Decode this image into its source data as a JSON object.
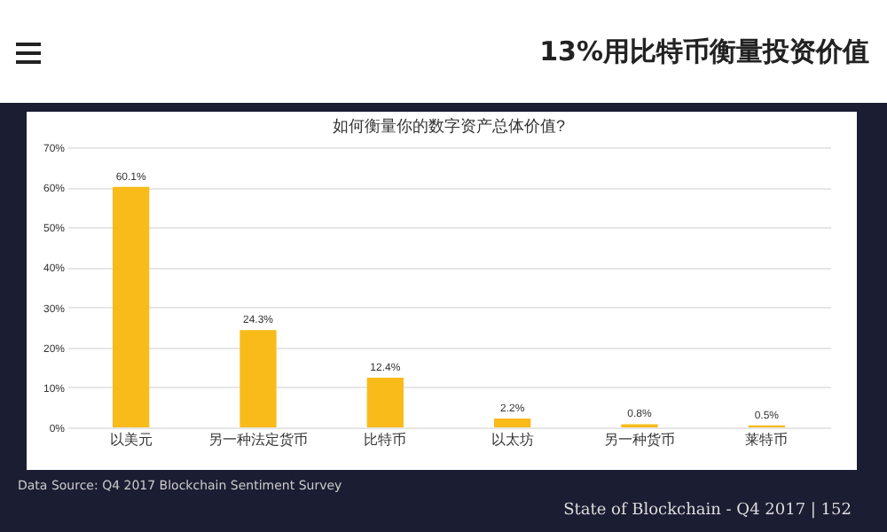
{
  "chart_data": {
    "type": "bar",
    "title": "13%用比特币衡量投资价值",
    "subtitle": "如何衡量你的数字资产总体价值?",
    "categories": [
      "以美元",
      "另一种法定货币",
      "比特币",
      "以太坊",
      "另一种货币",
      "莱特币"
    ],
    "values": [
      60.1,
      24.3,
      12.4,
      2.2,
      0.8,
      0.5
    ],
    "value_labels": [
      "60.1%",
      "24.3%",
      "12.4%",
      "2.2%",
      "0.8%",
      "0.5%"
    ],
    "color": "#f8bb1a",
    "ylim": [
      0,
      70
    ],
    "yticks": [
      {
        "value": 0,
        "label": "0%"
      },
      {
        "value": 10,
        "label": "10%"
      },
      {
        "value": 20,
        "label": "20%"
      },
      {
        "value": 30,
        "label": "30%"
      },
      {
        "value": 40,
        "label": "40%"
      },
      {
        "value": 50,
        "label": "50%"
      },
      {
        "value": 60,
        "label": "60%"
      },
      {
        "value": 70,
        "label": "70%"
      }
    ],
    "grid": "y",
    "annotations": [
      "Data Source: Q4 2017 Blockchain Sentiment Survey",
      "State of Blockchain - Q4 2017  |  152"
    ]
  }
}
